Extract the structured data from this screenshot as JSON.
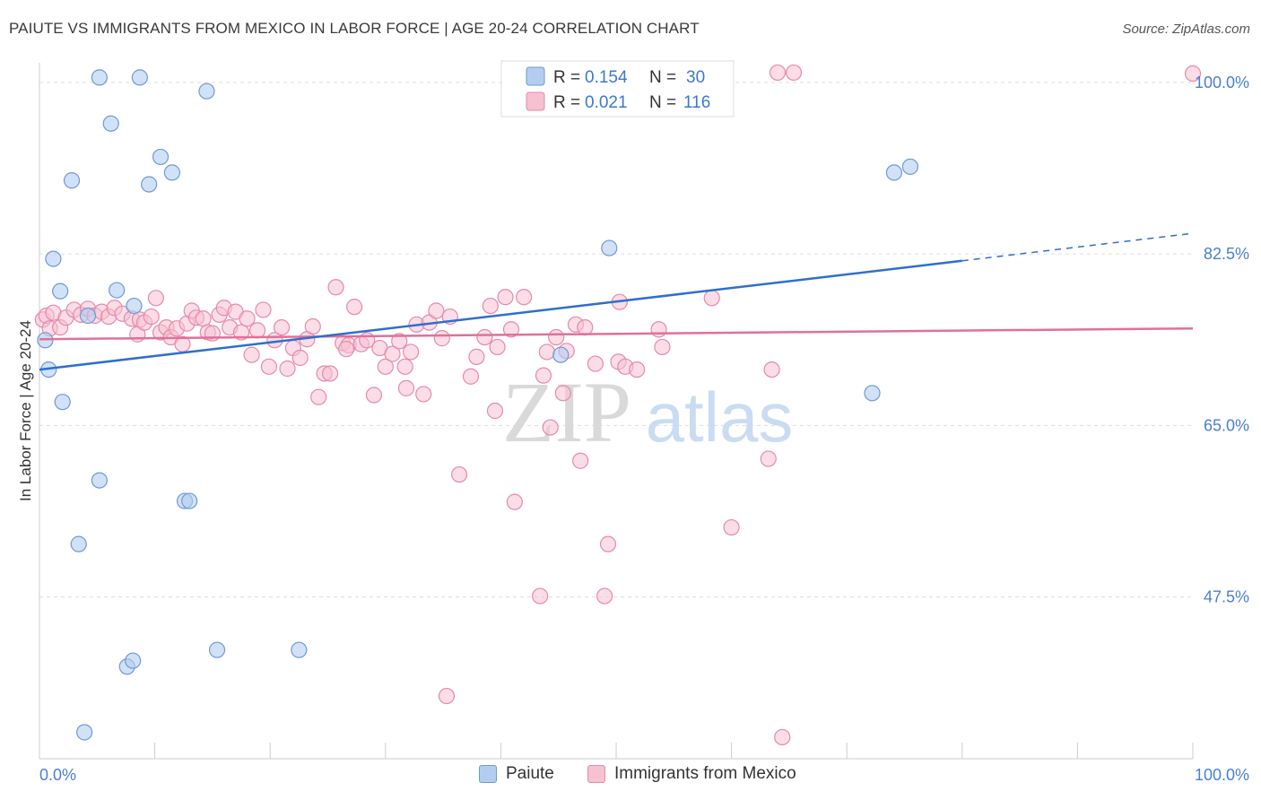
{
  "header": {
    "title": "PAIUTE VS IMMIGRANTS FROM MEXICO IN LABOR FORCE | AGE 20-24 CORRELATION CHART",
    "source": "Source: ZipAtlas.com"
  },
  "watermark": {
    "zip": "ZIP",
    "atlas": "atlas"
  },
  "legend_top": {
    "rows": [
      {
        "r_label": "R = ",
        "r_value": "0.154",
        "n_label": "N = ",
        "n_value": "30"
      },
      {
        "r_label": "R = ",
        "r_value": "0.021",
        "n_label": "N = ",
        "n_value": "116"
      }
    ]
  },
  "legend_bottom": {
    "paiute": "Paiute",
    "mexico": "Immigrants from Mexico"
  },
  "colors": {
    "paiute_fill": "#b3cdf0",
    "paiute_stroke": "#6f9ad6",
    "paiute_line": "#2e6fcf",
    "mexico_fill": "#f6c1d1",
    "mexico_stroke": "#e68aa8",
    "mexico_line": "#e0709a",
    "axis_text": "#4a7fd0",
    "grid": "#dddddd"
  },
  "chart_data": {
    "type": "scatter",
    "ylabel": "In Labor Force | Age 20-24",
    "xlim": [
      0,
      100
    ],
    "ylim": [
      31,
      102
    ],
    "x_tick_labels": {
      "min": "0.0%",
      "max": "100.0%"
    },
    "y_ticks": [
      {
        "value": 47.5,
        "label": "47.5%"
      },
      {
        "value": 65.0,
        "label": "65.0%"
      },
      {
        "value": 82.5,
        "label": "82.5%"
      },
      {
        "value": 100.0,
        "label": "100.0%"
      }
    ],
    "grid": true,
    "series": [
      {
        "name": "Paiute",
        "points": [
          [
            0.5,
            73.7
          ],
          [
            0.8,
            70.7
          ],
          [
            1.2,
            82.0
          ],
          [
            1.8,
            78.7
          ],
          [
            2.0,
            67.4
          ],
          [
            2.8,
            90.0
          ],
          [
            3.4,
            52.9
          ],
          [
            3.9,
            33.7
          ],
          [
            4.2,
            76.2
          ],
          [
            5.2,
            59.4
          ],
          [
            5.2,
            100.5
          ],
          [
            6.2,
            95.8
          ],
          [
            6.7,
            78.8
          ],
          [
            7.6,
            40.4
          ],
          [
            8.1,
            41.0
          ],
          [
            8.2,
            77.2
          ],
          [
            8.7,
            100.5
          ],
          [
            9.5,
            89.6
          ],
          [
            10.5,
            92.4
          ],
          [
            11.5,
            90.8
          ],
          [
            12.6,
            57.3
          ],
          [
            13.0,
            57.3
          ],
          [
            14.5,
            99.1
          ],
          [
            15.4,
            42.1
          ],
          [
            22.5,
            42.1
          ],
          [
            45.2,
            72.2
          ],
          [
            49.4,
            83.1
          ],
          [
            74.1,
            90.8
          ],
          [
            75.5,
            91.4
          ],
          [
            72.2,
            68.3
          ]
        ],
        "trend": {
          "x": [
            0,
            80
          ],
          "y": [
            70.7,
            81.8
          ],
          "dashed_to": [
            100,
            84.6
          ]
        }
      },
      {
        "name": "Immigrants from Mexico",
        "points": [
          [
            0.3,
            75.8
          ],
          [
            0.6,
            76.2
          ],
          [
            0.9,
            74.9
          ],
          [
            1.2,
            76.5
          ],
          [
            1.8,
            75.0
          ],
          [
            2.3,
            76.0
          ],
          [
            3.0,
            76.8
          ],
          [
            3.6,
            76.3
          ],
          [
            4.2,
            76.9
          ],
          [
            4.8,
            76.2
          ],
          [
            5.4,
            76.6
          ],
          [
            6.0,
            76.1
          ],
          [
            6.5,
            77.0
          ],
          [
            7.2,
            76.4
          ],
          [
            8.0,
            75.9
          ],
          [
            8.5,
            74.3
          ],
          [
            8.7,
            75.8
          ],
          [
            9.1,
            75.5
          ],
          [
            9.7,
            76.1
          ],
          [
            10.1,
            78.0
          ],
          [
            10.5,
            74.5
          ],
          [
            11.0,
            75.0
          ],
          [
            11.4,
            74.0
          ],
          [
            11.9,
            74.9
          ],
          [
            12.4,
            73.3
          ],
          [
            12.8,
            75.4
          ],
          [
            13.2,
            76.7
          ],
          [
            13.6,
            76.0
          ],
          [
            14.2,
            75.9
          ],
          [
            14.6,
            74.5
          ],
          [
            15.0,
            74.4
          ],
          [
            15.6,
            76.3
          ],
          [
            16.0,
            77.0
          ],
          [
            16.5,
            75.0
          ],
          [
            17.0,
            76.6
          ],
          [
            17.5,
            74.5
          ],
          [
            18.0,
            75.9
          ],
          [
            18.4,
            72.2
          ],
          [
            18.9,
            74.7
          ],
          [
            19.4,
            76.8
          ],
          [
            19.9,
            71.0
          ],
          [
            20.4,
            73.7
          ],
          [
            21.0,
            75.0
          ],
          [
            21.5,
            70.8
          ],
          [
            22.0,
            72.9
          ],
          [
            22.6,
            71.9
          ],
          [
            23.2,
            73.8
          ],
          [
            23.7,
            75.1
          ],
          [
            24.2,
            67.9
          ],
          [
            24.7,
            70.3
          ],
          [
            25.2,
            70.3
          ],
          [
            25.7,
            79.1
          ],
          [
            26.3,
            73.4
          ],
          [
            26.8,
            73.2
          ],
          [
            27.3,
            77.1
          ],
          [
            27.9,
            73.3
          ],
          [
            28.4,
            73.7
          ],
          [
            29.0,
            68.1
          ],
          [
            29.5,
            72.9
          ],
          [
            30.0,
            71.0
          ],
          [
            30.6,
            72.3
          ],
          [
            31.2,
            73.6
          ],
          [
            31.7,
            71.0
          ],
          [
            32.2,
            72.5
          ],
          [
            32.7,
            75.3
          ],
          [
            33.3,
            68.2
          ],
          [
            33.8,
            75.5
          ],
          [
            34.4,
            76.7
          ],
          [
            34.9,
            73.9
          ],
          [
            35.6,
            76.1
          ],
          [
            36.4,
            60.0
          ],
          [
            37.4,
            70.0
          ],
          [
            37.9,
            72.0
          ],
          [
            38.6,
            74.0
          ],
          [
            39.1,
            77.2
          ],
          [
            39.7,
            73.0
          ],
          [
            40.4,
            78.1
          ],
          [
            40.9,
            74.8
          ],
          [
            41.2,
            57.2
          ],
          [
            42.0,
            78.1
          ],
          [
            43.7,
            70.1
          ],
          [
            44.3,
            64.8
          ],
          [
            44.8,
            74.0
          ],
          [
            45.4,
            68.3
          ],
          [
            45.7,
            72.6
          ],
          [
            46.5,
            75.3
          ],
          [
            46.9,
            61.4
          ],
          [
            47.3,
            75.0
          ],
          [
            48.2,
            71.3
          ],
          [
            49.0,
            47.6
          ],
          [
            49.3,
            52.9
          ],
          [
            50.2,
            71.5
          ],
          [
            50.8,
            71.0
          ],
          [
            50.3,
            77.6
          ],
          [
            51.8,
            70.7
          ],
          [
            53.7,
            74.8
          ],
          [
            54.0,
            73.0
          ],
          [
            58.3,
            78.0
          ],
          [
            60.0,
            54.6
          ],
          [
            63.2,
            61.6
          ],
          [
            63.5,
            70.7
          ],
          [
            64.4,
            33.2
          ],
          [
            64.0,
            101.0
          ],
          [
            65.4,
            101.0
          ],
          [
            43.4,
            47.6
          ],
          [
            35.3,
            37.4
          ],
          [
            56.9,
            101.0
          ],
          [
            57.2,
            100.9
          ],
          [
            54.2,
            100.8
          ],
          [
            52.1,
            100.8
          ],
          [
            100.0,
            100.9
          ],
          [
            45.2,
            101.0
          ],
          [
            39.5,
            66.5
          ],
          [
            44.0,
            72.5
          ],
          [
            26.6,
            72.8
          ],
          [
            31.8,
            68.8
          ]
        ],
        "trend": {
          "x": [
            0,
            100
          ],
          "y": [
            73.8,
            74.9
          ]
        }
      }
    ]
  }
}
